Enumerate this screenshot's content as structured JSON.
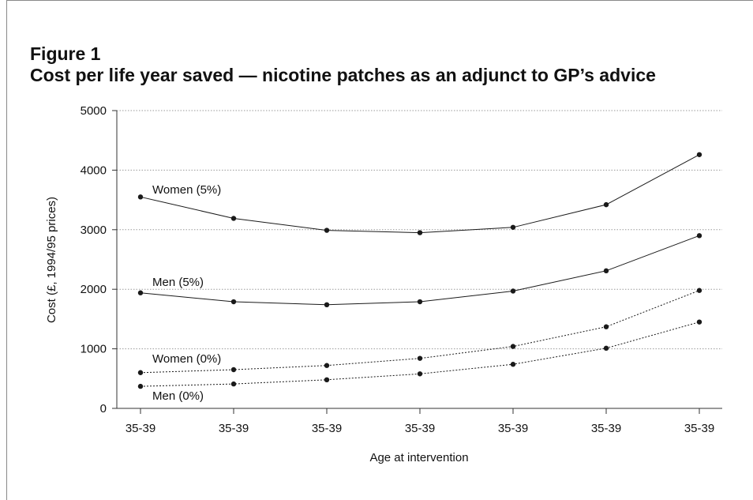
{
  "figure": {
    "label": "Figure 1",
    "title": "Cost per life year saved — nicotine patches as an adjunct to GP’s advice"
  },
  "chart_data": {
    "type": "line",
    "title": "Cost per life year saved — nicotine patches as an adjunct to GP’s advice",
    "xlabel": "Age at intervention",
    "ylabel": "Cost (£, 1994/95 prices)",
    "categories": [
      "35-39",
      "35-39",
      "35-39",
      "35-39",
      "35-39",
      "35-39",
      "35-39"
    ],
    "ylim": [
      0,
      5000
    ],
    "yticks": [
      0,
      1000,
      2000,
      3000,
      4000,
      5000
    ],
    "grid": "horizontal dotted",
    "series": [
      {
        "name": "Women (5%)",
        "style": "solid",
        "values": [
          3550,
          3190,
          2990,
          2950,
          3040,
          3420,
          4260
        ]
      },
      {
        "name": "Men (5%)",
        "style": "solid",
        "values": [
          1940,
          1790,
          1740,
          1790,
          1970,
          2310,
          2900
        ]
      },
      {
        "name": "Women (0%)",
        "style": "dotted",
        "values": [
          600,
          650,
          720,
          840,
          1040,
          1370,
          1980
        ]
      },
      {
        "name": "Men (0%)",
        "style": "dotted",
        "values": [
          370,
          410,
          480,
          580,
          740,
          1010,
          1450
        ]
      }
    ],
    "colors": {
      "line": "#1a1a1a",
      "grid": "#9a9a9a",
      "axis": "#333333"
    }
  }
}
